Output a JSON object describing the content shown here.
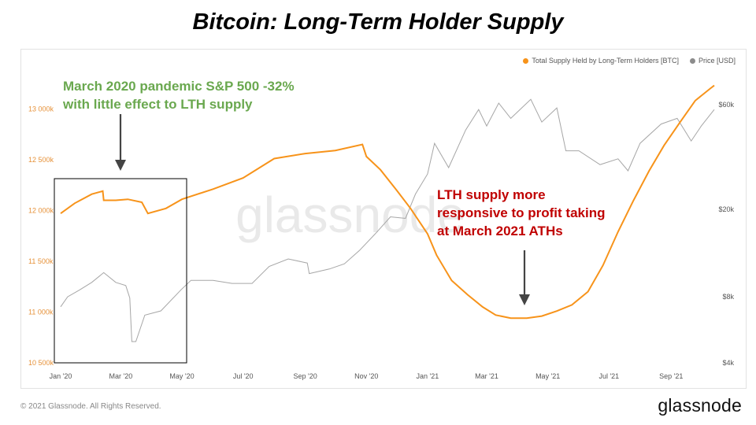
{
  "header": {
    "title": "Bitcoin: Long-Term Holder Supply"
  },
  "footer": {
    "copyright": "© 2021 Glassnode. All Rights Reserved.",
    "brand": "glassnode"
  },
  "watermark": "glassnode",
  "annotations": {
    "green": [
      "March 2020 pandemic S&P 500 -32%",
      "with little effect to LTH supply"
    ],
    "red": [
      "LTH supply more",
      "responsive to profit taking",
      "at March 2021 ATHs"
    ],
    "green_color": "#6aa84f",
    "red_color": "#c00000"
  },
  "chart_data": {
    "type": "line",
    "title": "Bitcoin: Long-Term Holder Supply",
    "x_ticks": [
      "Jan '20",
      "Mar '20",
      "May '20",
      "Jul '20",
      "Sep '20",
      "Nov '20",
      "Jan '21",
      "Mar '21",
      "May '21",
      "Jul '21",
      "Sep '21"
    ],
    "y_left": {
      "unit": "BTC",
      "ticks": [
        "10 500k",
        "11 000k",
        "11 500k",
        "12 000k",
        "12 500k",
        "13 000k"
      ],
      "range": [
        10500000,
        13250000
      ]
    },
    "y_right": {
      "unit": "USD",
      "scale": "log",
      "ticks": [
        "$4k",
        "$8k",
        "$20k",
        "$60k"
      ],
      "range": [
        4000,
        75000
      ]
    },
    "legend_position": "top-right",
    "series": [
      {
        "name": "Total Supply Held by Long-Term Holders [BTC]",
        "color": "#f7931a",
        "axis": "left",
        "points": [
          [
            "2020-01-01",
            11970000
          ],
          [
            "2020-01-15",
            12070000
          ],
          [
            "2020-02-01",
            12160000
          ],
          [
            "2020-02-12",
            12190000
          ],
          [
            "2020-02-13",
            12100000
          ],
          [
            "2020-02-25",
            12100000
          ],
          [
            "2020-03-08",
            12110000
          ],
          [
            "2020-03-22",
            12080000
          ],
          [
            "2020-03-28",
            11970000
          ],
          [
            "2020-04-15",
            12020000
          ],
          [
            "2020-05-01",
            12110000
          ],
          [
            "2020-06-01",
            12210000
          ],
          [
            "2020-07-01",
            12320000
          ],
          [
            "2020-08-01",
            12510000
          ],
          [
            "2020-09-01",
            12560000
          ],
          [
            "2020-10-01",
            12590000
          ],
          [
            "2020-10-28",
            12650000
          ],
          [
            "2020-11-01",
            12530000
          ],
          [
            "2020-11-15",
            12400000
          ],
          [
            "2020-12-01",
            12200000
          ],
          [
            "2020-12-15",
            12020000
          ],
          [
            "2021-01-01",
            11770000
          ],
          [
            "2021-01-10",
            11560000
          ],
          [
            "2021-01-25",
            11310000
          ],
          [
            "2021-02-10",
            11170000
          ],
          [
            "2021-02-25",
            11050000
          ],
          [
            "2021-03-10",
            10970000
          ],
          [
            "2021-03-25",
            10940000
          ],
          [
            "2021-04-10",
            10940000
          ],
          [
            "2021-04-25",
            10960000
          ],
          [
            "2021-05-10",
            11010000
          ],
          [
            "2021-05-25",
            11070000
          ],
          [
            "2021-06-10",
            11200000
          ],
          [
            "2021-06-25",
            11460000
          ],
          [
            "2021-07-10",
            11790000
          ],
          [
            "2021-07-25",
            12090000
          ],
          [
            "2021-08-10",
            12390000
          ],
          [
            "2021-08-25",
            12640000
          ],
          [
            "2021-09-10",
            12870000
          ],
          [
            "2021-09-25",
            13080000
          ],
          [
            "2021-10-10",
            13200000
          ],
          [
            "2021-10-14",
            13230000
          ]
        ]
      },
      {
        "name": "Price [USD]",
        "color": "#a6a6a6",
        "axis": "right",
        "points": [
          [
            "2020-01-01",
            7200
          ],
          [
            "2020-01-08",
            8000
          ],
          [
            "2020-01-20",
            8600
          ],
          [
            "2020-02-01",
            9300
          ],
          [
            "2020-02-13",
            10300
          ],
          [
            "2020-02-25",
            9300
          ],
          [
            "2020-03-06",
            9000
          ],
          [
            "2020-03-10",
            7900
          ],
          [
            "2020-03-12",
            5000
          ],
          [
            "2020-03-16",
            5000
          ],
          [
            "2020-03-25",
            6600
          ],
          [
            "2020-04-10",
            6900
          ],
          [
            "2020-04-30",
            8600
          ],
          [
            "2020-05-10",
            9500
          ],
          [
            "2020-06-01",
            9500
          ],
          [
            "2020-06-20",
            9200
          ],
          [
            "2020-07-10",
            9200
          ],
          [
            "2020-07-27",
            11000
          ],
          [
            "2020-08-15",
            11900
          ],
          [
            "2020-09-03",
            11400
          ],
          [
            "2020-09-05",
            10200
          ],
          [
            "2020-09-25",
            10700
          ],
          [
            "2020-10-10",
            11300
          ],
          [
            "2020-10-25",
            13000
          ],
          [
            "2020-11-10",
            15500
          ],
          [
            "2020-11-25",
            18500
          ],
          [
            "2020-12-10",
            18200
          ],
          [
            "2020-12-20",
            23500
          ],
          [
            "2021-01-01",
            29000
          ],
          [
            "2021-01-08",
            40000
          ],
          [
            "2021-01-22",
            31000
          ],
          [
            "2021-02-08",
            46000
          ],
          [
            "2021-02-21",
            57000
          ],
          [
            "2021-03-01",
            48000
          ],
          [
            "2021-03-13",
            61000
          ],
          [
            "2021-03-25",
            52000
          ],
          [
            "2021-04-14",
            63500
          ],
          [
            "2021-04-25",
            50000
          ],
          [
            "2021-05-10",
            58000
          ],
          [
            "2021-05-19",
            37000
          ],
          [
            "2021-06-01",
            37000
          ],
          [
            "2021-06-22",
            32000
          ],
          [
            "2021-07-10",
            34000
          ],
          [
            "2021-07-20",
            30000
          ],
          [
            "2021-08-01",
            40000
          ],
          [
            "2021-08-22",
            49000
          ],
          [
            "2021-09-07",
            52000
          ],
          [
            "2021-09-21",
            41000
          ],
          [
            "2021-10-01",
            48000
          ],
          [
            "2021-10-14",
            57000
          ]
        ]
      }
    ]
  }
}
